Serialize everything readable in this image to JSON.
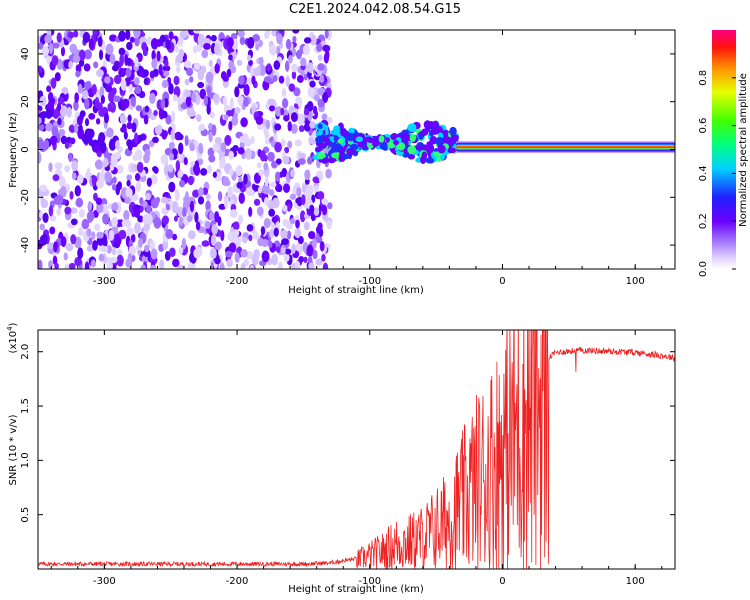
{
  "figure_title": "C2E1.2024.042.08.54.G15",
  "colors": {
    "spectrogram_low": "#d8c8ff",
    "spectrogram_mid": "#7a1cff",
    "snr_line": "#ee2222",
    "axis": "#000000"
  },
  "colorbar": {
    "label": "Normalized spectral amplitude",
    "ticks": [
      "0.0",
      "0.2",
      "0.4",
      "0.6",
      "0.8"
    ],
    "tick_values": [
      0.0,
      0.2,
      0.4,
      0.6,
      0.8
    ],
    "range": [
      0,
      1
    ]
  },
  "chart_data": [
    {
      "type": "heatmap",
      "title": "C2E1.2024.042.08.54.G15",
      "xlabel": "Height of straight line (km)",
      "ylabel": "Frequency (Hz)",
      "xlim": [
        -350,
        130
      ],
      "ylim": [
        -50,
        50
      ],
      "xticks": [
        -300,
        -200,
        -100,
        0,
        100
      ],
      "xtick_labels": [
        "-300",
        "-200",
        "-100",
        "0",
        "100"
      ],
      "yticks": [
        -40,
        -20,
        0,
        20,
        40
      ],
      "ytick_labels": [
        "-40",
        "-20",
        "0",
        "20",
        "40"
      ],
      "grid": false,
      "regions": [
        {
          "name": "noise scatter",
          "x_range": [
            -350,
            -130
          ],
          "y_range": [
            -50,
            50
          ],
          "amplitude": 0.2
        },
        {
          "name": "emerging signal",
          "x_range": [
            -140,
            -35
          ],
          "y_center": 3,
          "y_spread": 8,
          "amplitude": 0.5
        },
        {
          "name": "stable signal",
          "x_range": [
            -35,
            130
          ],
          "y_center": 1,
          "y_spread": 2,
          "amplitude": 0.95
        }
      ]
    },
    {
      "type": "line",
      "xlabel": "Height of straight line (km)",
      "ylabel": "SNR (10 * v/v)",
      "y_scale_note": "(x10",
      "y_scale_exp": "4",
      "y_scale_close": ")",
      "xlim": [
        -350,
        130
      ],
      "ylim": [
        0,
        2.2
      ],
      "xticks": [
        -300,
        -200,
        -100,
        0,
        100
      ],
      "xtick_labels": [
        "-300",
        "-200",
        "-100",
        "0",
        "100"
      ],
      "yticks": [
        0.5,
        1.0,
        1.5,
        2.0
      ],
      "ytick_labels": [
        "0.5",
        "1.0",
        "1.5",
        "2.0"
      ],
      "grid": false,
      "series": [
        {
          "x": [
            -350,
            -300,
            -250,
            -200,
            -150,
            -130,
            -120,
            -110,
            -100,
            -90,
            -80,
            -70,
            -60,
            -50,
            -40,
            -30,
            -20,
            -10,
            0,
            10,
            20,
            30,
            40,
            60,
            80,
            100,
            120,
            130
          ],
          "y": [
            0.05,
            0.05,
            0.05,
            0.05,
            0.05,
            0.06,
            0.08,
            0.1,
            0.15,
            0.2,
            0.28,
            0.3,
            0.35,
            0.45,
            0.55,
            0.75,
            0.95,
            1.1,
            1.3,
            1.55,
            1.75,
            1.9,
            2.0,
            2.02,
            2.01,
            2.0,
            1.97,
            1.95
          ]
        }
      ]
    }
  ]
}
